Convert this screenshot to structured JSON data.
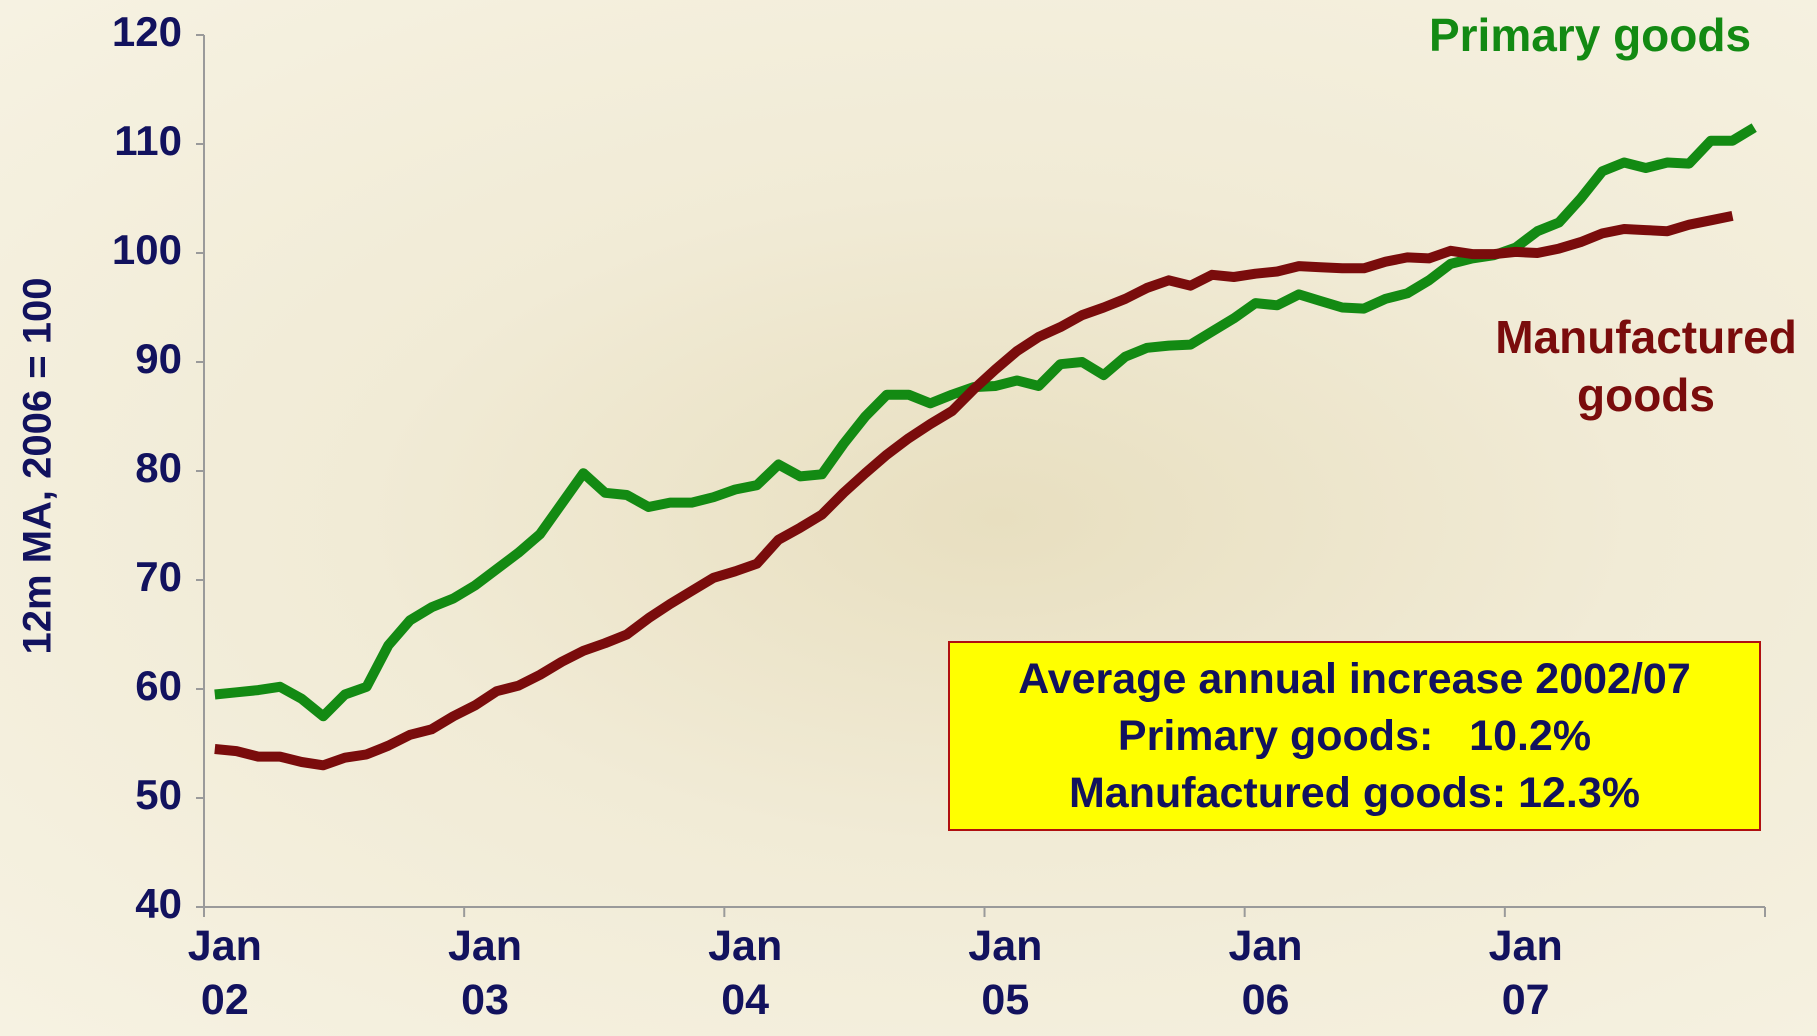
{
  "chart_data": {
    "type": "line",
    "y_label": "12m MA, 2006 = 100",
    "categories": [
      "Jan 02",
      null,
      null,
      null,
      null,
      null,
      null,
      null,
      null,
      null,
      null,
      null,
      "Jan 03",
      null,
      null,
      null,
      null,
      null,
      null,
      null,
      null,
      null,
      null,
      null,
      "Jan 04",
      null,
      null,
      null,
      null,
      null,
      null,
      null,
      null,
      null,
      null,
      null,
      "Jan 05",
      null,
      null,
      null,
      null,
      null,
      null,
      null,
      null,
      null,
      null,
      null,
      "Jan 06",
      null,
      null,
      null,
      null,
      null,
      null,
      null,
      null,
      null,
      null,
      null,
      "Jan 07",
      null,
      null,
      null,
      null,
      null,
      null,
      null,
      null,
      null,
      null,
      null
    ],
    "series": [
      {
        "name": "Primary goods",
        "color": "#138a13",
        "values": [
          59.5,
          59.7,
          59.9,
          60.2,
          59.1,
          57.5,
          59.5,
          60.2,
          64,
          66.3,
          67.5,
          68.3,
          69.5,
          71,
          72.5,
          74.2,
          77,
          79.8,
          78,
          77.8,
          76.7,
          77.1,
          77.1,
          77.6,
          78.3,
          78.7,
          80.6,
          79.5,
          79.7,
          82.5,
          85,
          87,
          87,
          86.2,
          87,
          87.7,
          87.8,
          88.3,
          87.8,
          89.8,
          90,
          88.8,
          90.5,
          91.3,
          91.5,
          91.6,
          92.8,
          94,
          95.4,
          95.2,
          96.2,
          95.6,
          95,
          94.9,
          95.8,
          96.3,
          97.5,
          99,
          99.5,
          99.8,
          100.5,
          102,
          102.8,
          105,
          107.5,
          108.3,
          107.8,
          108.3,
          108.2,
          110.3,
          110.3,
          111.5
        ]
      },
      {
        "name": "Manufactured goods",
        "color": "#7a0c0c",
        "values": [
          54.5,
          54.3,
          53.8,
          53.8,
          53.3,
          53,
          53.7,
          54,
          54.8,
          55.8,
          56.3,
          57.5,
          58.5,
          59.8,
          60.3,
          61.3,
          62.5,
          63.5,
          64.2,
          65,
          66.5,
          67.8,
          69,
          70.2,
          70.8,
          71.5,
          73.7,
          74.8,
          76,
          78,
          79.8,
          81.5,
          83,
          84.3,
          85.5,
          87.5,
          89.3,
          91,
          92.3,
          93.2,
          94.3,
          95,
          95.8,
          96.8,
          97.5,
          97,
          98,
          97.8,
          98.1,
          98.3,
          98.8,
          98.7,
          98.6,
          98.6,
          99.2,
          99.6,
          99.5,
          100.2,
          99.9,
          99.9,
          100.1,
          100,
          100.4,
          101,
          101.8,
          102.2,
          102.1,
          102,
          102.6,
          103,
          103.4,
          null
        ]
      }
    ],
    "annotation": [
      "Average annual increase 2002/07",
      "Primary goods:   10.2%",
      "Manufactured goods: 12.3%"
    ],
    "annotation_background": "#ffff00",
    "ylim": [
      40,
      120
    ],
    "yticks": [
      40,
      50,
      60,
      70,
      80,
      90,
      100,
      110,
      120
    ]
  }
}
